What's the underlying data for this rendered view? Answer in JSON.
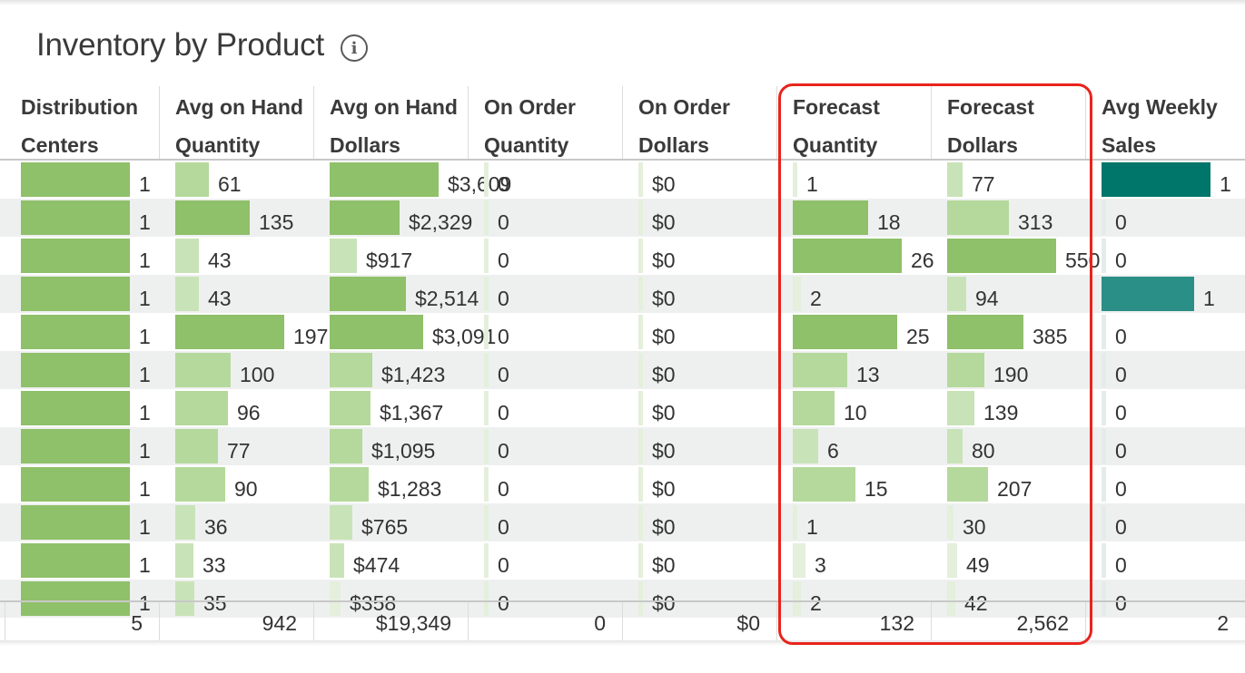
{
  "title": "Inventory by Product",
  "icons": {
    "info": "info-icon"
  },
  "colors": {
    "green_bar": "#8fc06a",
    "green_bar_light": "#c5e0b4",
    "teal_bar": "#00766b",
    "highlight": "#e8241c",
    "row_alt": "#eef0ef"
  },
  "columns": [
    {
      "key": "dc",
      "label": "Distribution\nCenters",
      "max": 1,
      "palette": "green",
      "min_bar_fraction": 0.2
    },
    {
      "key": "ohq",
      "label": "Avg on Hand\nQuantity",
      "max": 197,
      "palette": "green",
      "min_bar_fraction": 0.2
    },
    {
      "key": "ohd",
      "label": "Avg on Hand\nDollars",
      "max": 3609,
      "palette": "green",
      "min_bar_fraction": 0.2
    },
    {
      "key": "ooq",
      "label": "On Order\nQuantity",
      "max": 1,
      "palette": "green",
      "min_bar_fraction": 0.2
    },
    {
      "key": "ood",
      "label": "On Order\nDollars",
      "max": 1,
      "palette": "green",
      "min_bar_fraction": 0.2
    },
    {
      "key": "fq",
      "label": "Forecast\nQuantity",
      "max": 26,
      "palette": "green",
      "min_bar_fraction": 0.2
    },
    {
      "key": "fd",
      "label": "Forecast\nDollars",
      "max": 550,
      "palette": "green",
      "min_bar_fraction": 0.2
    },
    {
      "key": "aws",
      "label": "Avg Weekly\nSales",
      "max": 1,
      "palette": "teal",
      "min_bar_fraction": 0.2
    }
  ],
  "rows": [
    {
      "dc": {
        "text": "1",
        "v": 1
      },
      "ohq": {
        "text": "61",
        "v": 61
      },
      "ohd": {
        "text": "$3,609",
        "v": 3609
      },
      "ooq": {
        "text": "0",
        "v": 0
      },
      "ood": {
        "text": "$0",
        "v": 0
      },
      "fq": {
        "text": "1",
        "v": 1
      },
      "fd": {
        "text": "77",
        "v": 77
      },
      "aws": {
        "text": "1",
        "v": 1
      }
    },
    {
      "dc": {
        "text": "1",
        "v": 1
      },
      "ohq": {
        "text": "135",
        "v": 135
      },
      "ohd": {
        "text": "$2,329",
        "v": 2329
      },
      "ooq": {
        "text": "0",
        "v": 0
      },
      "ood": {
        "text": "$0",
        "v": 0
      },
      "fq": {
        "text": "18",
        "v": 18
      },
      "fd": {
        "text": "313",
        "v": 313
      },
      "aws": {
        "text": "0",
        "v": 0
      }
    },
    {
      "dc": {
        "text": "1",
        "v": 1
      },
      "ohq": {
        "text": "43",
        "v": 43
      },
      "ohd": {
        "text": "$917",
        "v": 917
      },
      "ooq": {
        "text": "0",
        "v": 0
      },
      "ood": {
        "text": "$0",
        "v": 0
      },
      "fq": {
        "text": "26",
        "v": 26
      },
      "fd": {
        "text": "550",
        "v": 550
      },
      "aws": {
        "text": "0",
        "v": 0
      }
    },
    {
      "dc": {
        "text": "1",
        "v": 1
      },
      "ohq": {
        "text": "43",
        "v": 43
      },
      "ohd": {
        "text": "$2,514",
        "v": 2514
      },
      "ooq": {
        "text": "0",
        "v": 0
      },
      "ood": {
        "text": "$0",
        "v": 0
      },
      "fq": {
        "text": "2",
        "v": 2
      },
      "fd": {
        "text": "94",
        "v": 94
      },
      "aws": {
        "text": "1",
        "v": 0.85
      }
    },
    {
      "dc": {
        "text": "1",
        "v": 1
      },
      "ohq": {
        "text": "197",
        "v": 197
      },
      "ohd": {
        "text": "$3,091",
        "v": 3091
      },
      "ooq": {
        "text": "0",
        "v": 0
      },
      "ood": {
        "text": "$0",
        "v": 0
      },
      "fq": {
        "text": "25",
        "v": 25
      },
      "fd": {
        "text": "385",
        "v": 385
      },
      "aws": {
        "text": "0",
        "v": 0
      }
    },
    {
      "dc": {
        "text": "1",
        "v": 1
      },
      "ohq": {
        "text": "100",
        "v": 100
      },
      "ohd": {
        "text": "$1,423",
        "v": 1423
      },
      "ooq": {
        "text": "0",
        "v": 0
      },
      "ood": {
        "text": "$0",
        "v": 0
      },
      "fq": {
        "text": "13",
        "v": 13
      },
      "fd": {
        "text": "190",
        "v": 190
      },
      "aws": {
        "text": "0",
        "v": 0
      }
    },
    {
      "dc": {
        "text": "1",
        "v": 1
      },
      "ohq": {
        "text": "96",
        "v": 96
      },
      "ohd": {
        "text": "$1,367",
        "v": 1367
      },
      "ooq": {
        "text": "0",
        "v": 0
      },
      "ood": {
        "text": "$0",
        "v": 0
      },
      "fq": {
        "text": "10",
        "v": 10
      },
      "fd": {
        "text": "139",
        "v": 139
      },
      "aws": {
        "text": "0",
        "v": 0
      }
    },
    {
      "dc": {
        "text": "1",
        "v": 1
      },
      "ohq": {
        "text": "77",
        "v": 77
      },
      "ohd": {
        "text": "$1,095",
        "v": 1095
      },
      "ooq": {
        "text": "0",
        "v": 0
      },
      "ood": {
        "text": "$0",
        "v": 0
      },
      "fq": {
        "text": "6",
        "v": 6
      },
      "fd": {
        "text": "80",
        "v": 80
      },
      "aws": {
        "text": "0",
        "v": 0
      }
    },
    {
      "dc": {
        "text": "1",
        "v": 1
      },
      "ohq": {
        "text": "90",
        "v": 90
      },
      "ohd": {
        "text": "$1,283",
        "v": 1283
      },
      "ooq": {
        "text": "0",
        "v": 0
      },
      "ood": {
        "text": "$0",
        "v": 0
      },
      "fq": {
        "text": "15",
        "v": 15
      },
      "fd": {
        "text": "207",
        "v": 207
      },
      "aws": {
        "text": "0",
        "v": 0
      }
    },
    {
      "dc": {
        "text": "1",
        "v": 1
      },
      "ohq": {
        "text": "36",
        "v": 36
      },
      "ohd": {
        "text": "$765",
        "v": 765
      },
      "ooq": {
        "text": "0",
        "v": 0
      },
      "ood": {
        "text": "$0",
        "v": 0
      },
      "fq": {
        "text": "1",
        "v": 1
      },
      "fd": {
        "text": "30",
        "v": 30
      },
      "aws": {
        "text": "0",
        "v": 0
      }
    },
    {
      "dc": {
        "text": "1",
        "v": 1
      },
      "ohq": {
        "text": "33",
        "v": 33
      },
      "ohd": {
        "text": "$474",
        "v": 474
      },
      "ooq": {
        "text": "0",
        "v": 0
      },
      "ood": {
        "text": "$0",
        "v": 0
      },
      "fq": {
        "text": "3",
        "v": 3
      },
      "fd": {
        "text": "49",
        "v": 49
      },
      "aws": {
        "text": "0",
        "v": 0
      }
    },
    {
      "dc": {
        "text": "1",
        "v": 1
      },
      "ohq": {
        "text": "35",
        "v": 35
      },
      "ohd": {
        "text": "$358",
        "v": 358
      },
      "ooq": {
        "text": "0",
        "v": 0
      },
      "ood": {
        "text": "$0",
        "v": 0
      },
      "fq": {
        "text": "2",
        "v": 2
      },
      "fd": {
        "text": "42",
        "v": 42
      },
      "aws": {
        "text": "0",
        "v": 0
      }
    }
  ],
  "totals": {
    "dc": "5",
    "ohq": "942",
    "ohd": "$19,349",
    "ooq": "0",
    "ood": "$0",
    "fq": "132",
    "fd": "2,562",
    "aws": "2"
  },
  "highlighted_columns": [
    "fq",
    "fd"
  ]
}
